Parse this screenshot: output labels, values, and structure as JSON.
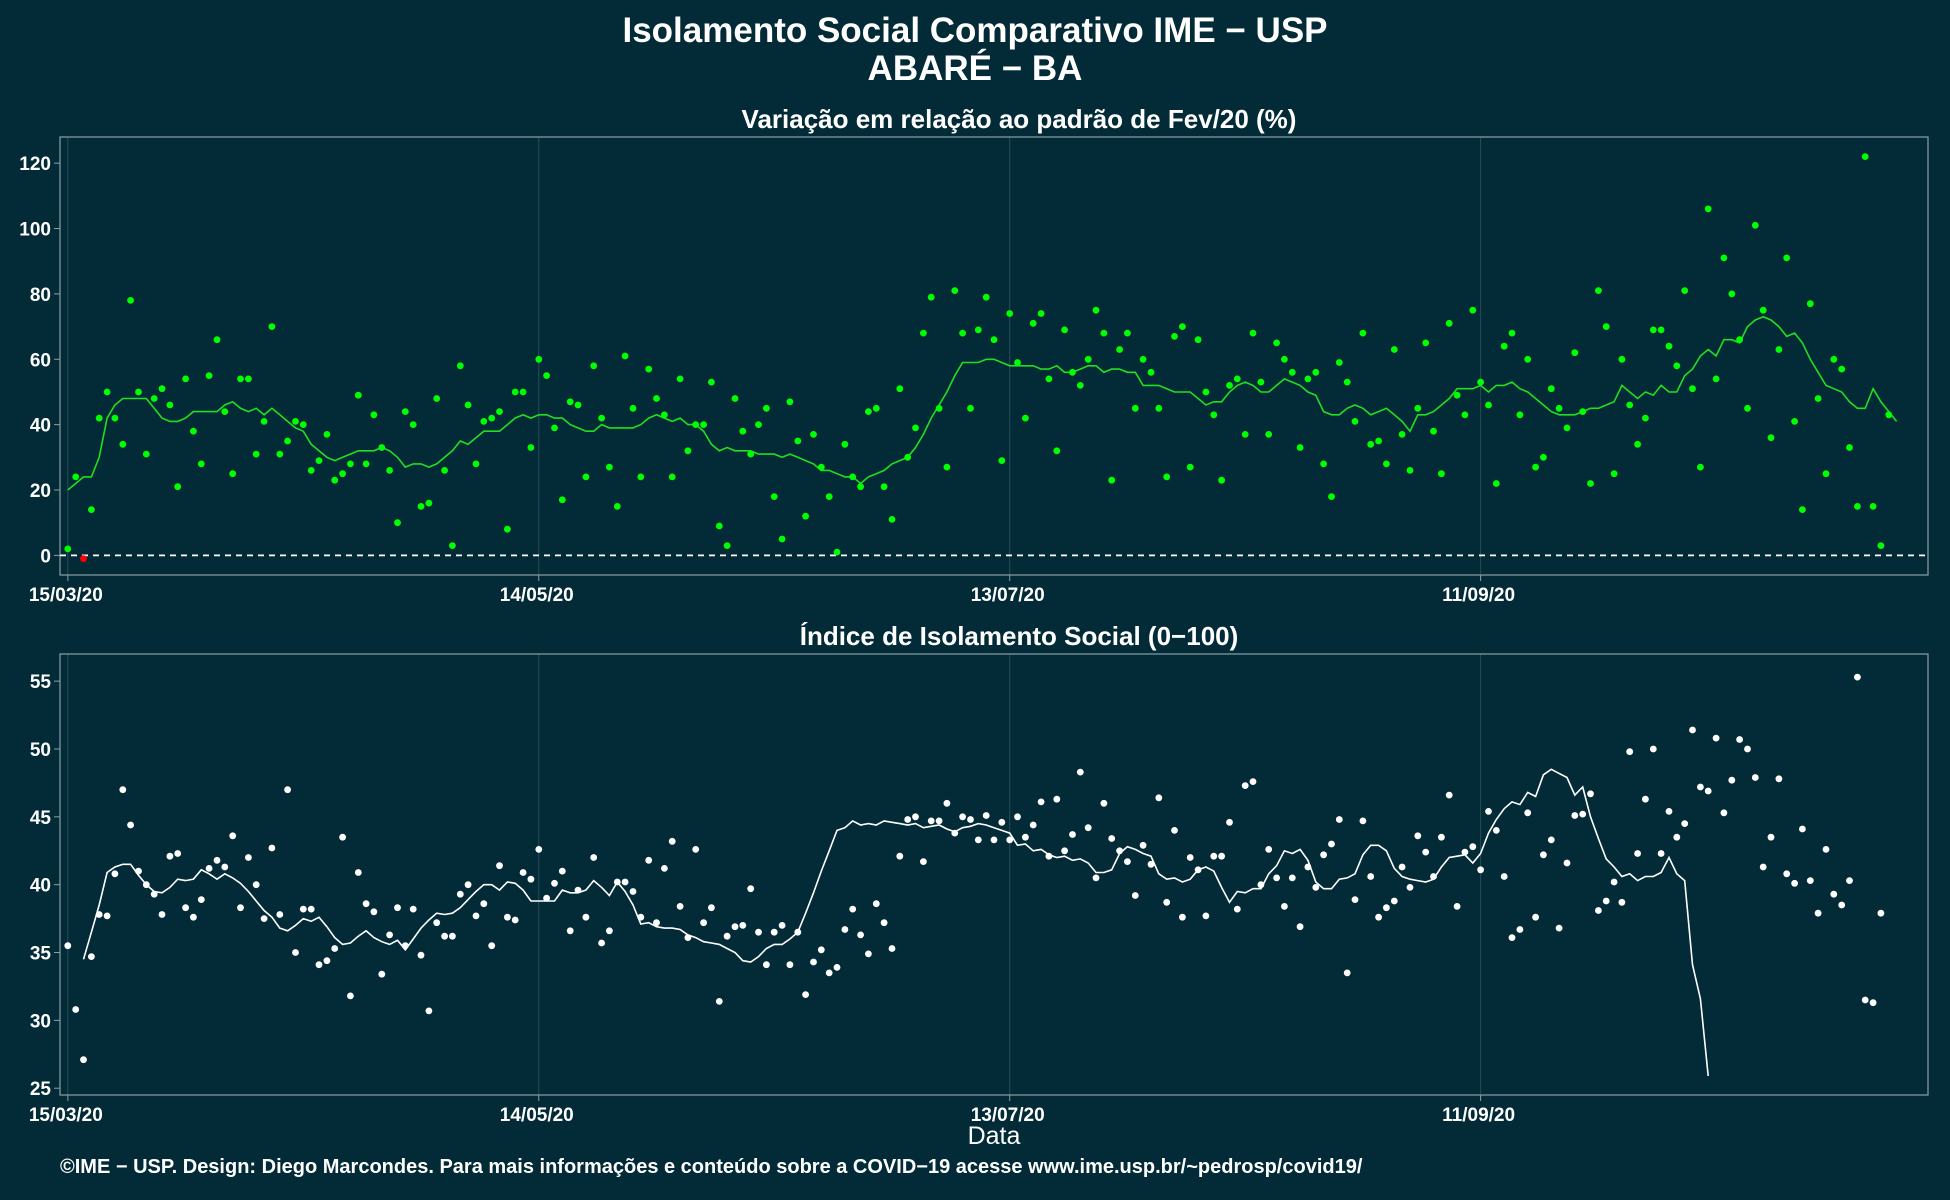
{
  "title": "Isolamento Social Comparativo IME − USP",
  "subtitle": "ABARÉ − BA",
  "footer": "©IME − USP. Design: Diego Marcondes. Para mais informações e conteúdo sobre a COVID−19 acesse www.ime.usp.br/~pedrosp/covid19/",
  "colors": {
    "background": "#022b37",
    "panel_border": "#8aa0a6",
    "grid": "#2a4d57",
    "variation_points": "#00ff00",
    "variation_negative_points": "#ff0000",
    "variation_line": "#22dd22",
    "index_points": "#ffffff",
    "index_line": "#ffffff",
    "zero_line": "#ffffff"
  },
  "chart_data": [
    {
      "type": "scatter",
      "title": "Variação em relação ao padrão de Fev/20 (%)",
      "xlabel": "",
      "ylabel": "",
      "x_start": "15/03/20",
      "x_ticks": [
        "15/03/20",
        "14/05/20",
        "13/07/20",
        "11/09/20"
      ],
      "x_tick_days": [
        0,
        60,
        120,
        180
      ],
      "x_range_days": [
        -1,
        237
      ],
      "ylim": [
        -6,
        128
      ],
      "y_ticks": [
        0,
        20,
        40,
        60,
        80,
        100,
        120
      ],
      "zero_line": true,
      "grid": true,
      "series": [
        {
          "kind": "points",
          "values": [
            2,
            24,
            -1,
            14,
            42,
            50,
            42,
            34,
            78,
            50,
            31,
            48,
            51,
            46,
            21,
            54,
            38,
            28,
            55,
            66,
            44,
            25,
            54,
            54,
            31,
            41,
            70,
            31,
            35,
            41,
            40,
            26,
            29,
            37,
            23,
            25,
            28,
            49,
            28,
            43,
            33,
            26,
            10,
            44,
            40,
            15,
            16,
            48,
            26,
            3,
            58,
            46,
            28,
            41,
            42,
            44,
            8,
            50,
            50,
            33,
            60,
            55,
            39,
            17,
            47,
            46,
            24,
            58,
            42,
            27,
            15,
            61,
            45,
            24,
            57,
            48,
            43,
            24,
            54,
            32,
            40,
            40,
            53,
            9,
            3,
            48,
            38,
            31,
            40,
            45,
            18,
            5,
            47,
            35,
            12,
            37,
            27,
            18,
            1,
            34,
            24,
            21,
            44,
            45,
            21,
            11,
            51,
            30,
            39,
            68,
            79,
            45,
            27,
            81,
            68,
            45,
            69,
            79,
            66,
            29,
            74,
            59,
            42,
            71,
            74,
            54,
            32,
            69,
            56,
            52,
            60,
            75,
            68,
            23,
            63,
            68,
            45,
            60,
            56,
            45,
            24,
            67,
            70,
            27,
            66,
            50,
            43,
            23,
            52,
            54,
            37,
            68,
            53,
            37,
            65,
            60,
            56,
            33,
            54,
            56,
            28,
            18,
            59,
            53,
            41,
            68,
            34,
            35,
            28,
            63,
            37,
            26,
            45,
            65,
            38,
            25,
            71,
            49,
            43,
            75,
            53,
            46,
            22,
            64,
            68,
            43,
            60,
            27,
            30,
            51,
            45,
            39,
            62,
            44,
            22,
            81,
            70,
            25,
            60,
            46,
            34,
            42,
            69,
            69,
            64,
            58,
            81,
            51,
            27,
            106,
            54,
            91,
            80,
            66,
            45,
            101,
            75,
            36,
            63,
            91,
            41,
            14,
            77,
            48,
            25,
            60,
            57,
            33,
            15,
            122,
            15,
            3,
            43
          ]
        },
        {
          "kind": "moving_average",
          "values": [
            20,
            22,
            24,
            24,
            30,
            42,
            46,
            48,
            48,
            48,
            48,
            45,
            42,
            41,
            41,
            42,
            44,
            44,
            44,
            44,
            46,
            47,
            45,
            44,
            45,
            43,
            45,
            43,
            41,
            39,
            38,
            34,
            32,
            30,
            29,
            30,
            31,
            32,
            32,
            32,
            33,
            32,
            30,
            27,
            28,
            28,
            27,
            28,
            30,
            32,
            35,
            34,
            36,
            38,
            38,
            38,
            40,
            42,
            43,
            42,
            43,
            43,
            42,
            42,
            40,
            39,
            38,
            38,
            40,
            39,
            39,
            39,
            39,
            40,
            42,
            43,
            42,
            41,
            42,
            40,
            40,
            38,
            34,
            32,
            33,
            32,
            32,
            32,
            31,
            31,
            31,
            30,
            31,
            30,
            29,
            28,
            26,
            26,
            25,
            24,
            24,
            22,
            24,
            25,
            26,
            28,
            29,
            30,
            33,
            37,
            42,
            46,
            50,
            55,
            59,
            59,
            59,
            60,
            60,
            59,
            58,
            58,
            58,
            58,
            57,
            57,
            58,
            56,
            56,
            57,
            58,
            58,
            56,
            57,
            57,
            56,
            56,
            52,
            52,
            52,
            51,
            50,
            50,
            50,
            48,
            46,
            47,
            47,
            50,
            52,
            53,
            52,
            50,
            50,
            52,
            54,
            53,
            52,
            50,
            49,
            44,
            43,
            43,
            45,
            46,
            45,
            43,
            44,
            45,
            43,
            41,
            38,
            43,
            43,
            44,
            46,
            48,
            51,
            51,
            51,
            52,
            50,
            52,
            52,
            53,
            51,
            50,
            48,
            46,
            44,
            43,
            43,
            43,
            44,
            45,
            45,
            46,
            47,
            52,
            50,
            48,
            50,
            49,
            52,
            50,
            50,
            55,
            57,
            61,
            63,
            61,
            66,
            66,
            65,
            70,
            72,
            73,
            72,
            70,
            67,
            68,
            65,
            60,
            56,
            52,
            51,
            50,
            47,
            45,
            45,
            51,
            47,
            44,
            41
          ]
        }
      ]
    },
    {
      "type": "scatter",
      "title": "Índice de Isolamento Social (0−100)",
      "xlabel": "Data",
      "ylabel": "",
      "x_start": "15/03/20",
      "x_ticks": [
        "15/03/20",
        "14/05/20",
        "13/07/20",
        "11/09/20"
      ],
      "x_tick_days": [
        0,
        60,
        120,
        180
      ],
      "x_range_days": [
        -1,
        237
      ],
      "ylim": [
        24.5,
        57
      ],
      "y_ticks": [
        25,
        30,
        35,
        40,
        45,
        50,
        55
      ],
      "grid": true,
      "series": [
        {
          "kind": "points",
          "values": [
            35.5,
            30.8,
            27.1,
            34.7,
            37.8,
            37.7,
            40.8,
            47,
            44.4,
            41,
            40,
            39.3,
            37.8,
            42.1,
            42.3,
            38.3,
            37.6,
            38.9,
            41.2,
            41.8,
            41.3,
            43.6,
            38.3,
            42,
            40,
            37.5,
            42.7,
            37.8,
            47,
            35,
            38.2,
            38.2,
            34.1,
            34.4,
            35.3,
            43.5,
            31.8,
            40.9,
            38.6,
            38,
            33.4,
            36.3,
            38.3,
            35.5,
            38.2,
            34.8,
            30.7,
            37.2,
            36.2,
            36.2,
            39.3,
            40,
            37.7,
            38.6,
            35.5,
            41.4,
            37.6,
            37.4,
            40.9,
            40.4,
            42.6,
            39,
            40.1,
            41,
            36.6,
            39.6,
            37.6,
            42,
            35.7,
            36.6,
            40.2,
            40.2,
            39.5,
            37.6,
            41.8,
            37.2,
            41.2,
            43.2,
            38.4,
            36.1,
            42.6,
            37.2,
            38.3,
            31.4,
            36.2,
            36.9,
            37,
            39.7,
            36.5,
            34.1,
            36.5,
            37,
            34.1,
            36.5,
            31.9,
            34.3,
            35.2,
            33.5,
            33.9,
            36.7,
            38.2,
            36.3,
            34.9,
            38.6,
            37.2,
            35.3,
            42.1,
            44.8,
            45,
            41.7,
            44.7,
            44.7,
            46,
            43.8,
            45,
            44.8,
            43.3,
            45.1,
            43.3,
            44.6,
            43.3,
            45,
            43.5,
            44.4,
            46.1,
            42.1,
            46.3,
            42.5,
            43.7,
            48.3,
            44.2,
            40.5,
            46,
            43.4,
            42.5,
            41.7,
            39.2,
            42.9,
            41.5,
            46.4,
            38.7,
            44,
            37.6,
            42,
            41.1,
            37.7,
            42.1,
            42.1,
            44.6,
            38.2,
            47.3,
            47.6,
            40,
            42.6,
            40.5,
            38.4,
            40.5,
            36.9,
            41.3,
            39.8,
            42.2,
            43,
            44.8,
            33.5,
            38.9,
            44.7,
            40.6,
            37.6,
            38.3,
            38.8,
            41.3,
            39.8,
            43.6,
            42.4,
            40.6,
            43.5,
            46.6,
            38.4,
            42.4,
            42.8,
            41.1,
            45.4,
            44,
            40.6,
            36.1,
            36.7,
            45.3,
            37.6,
            42.2,
            43.3,
            36.8,
            41.6,
            45.1,
            45.2,
            46.7,
            38.1,
            38.8,
            40.2,
            38.7,
            49.8,
            42.3,
            46.3,
            50,
            42.3,
            45.4,
            43.5,
            44.5,
            51.4,
            47.2,
            46.9,
            50.8,
            45.3,
            47.7,
            50.7,
            50,
            47.9,
            41.3,
            43.5,
            47.8,
            40.8,
            40.1,
            44.1,
            40.3,
            37.9,
            42.6,
            39.3,
            38.5,
            40.3,
            55.3,
            31.5,
            31.3,
            37.9
          ]
        },
        {
          "kind": "moving_average",
          "values": [
            null,
            null,
            34.5,
            36.5,
            38.5,
            40.9,
            41.3,
            41.5,
            41.5,
            40.7,
            40,
            39.5,
            39.4,
            39.8,
            40.4,
            40.3,
            40.4,
            41.1,
            40.8,
            40.4,
            40.8,
            40.5,
            40.1,
            39.5,
            38.8,
            38.1,
            37.6,
            36.8,
            36.6,
            37,
            37.5,
            37.3,
            37.6,
            36.9,
            36.1,
            35.6,
            35.7,
            36.2,
            36.6,
            36.1,
            35.8,
            35.6,
            35.9,
            35.2,
            36,
            36.8,
            37.4,
            37.9,
            37.8,
            37.9,
            38.3,
            38.9,
            39.5,
            40,
            40,
            39.6,
            40.2,
            40.1,
            39.6,
            38.8,
            38.8,
            38.8,
            38.8,
            39.6,
            39.4,
            39.4,
            39.6,
            40.3,
            39.8,
            39.2,
            40.2,
            39.5,
            38.5,
            37.1,
            37.2,
            36.9,
            36.8,
            36.8,
            36.7,
            36.3,
            36.1,
            35.8,
            35.7,
            35.6,
            35.3,
            35,
            34.4,
            34.3,
            34.7,
            35.3,
            35.6,
            35.6,
            36,
            36.5,
            37.9,
            39.4,
            41,
            42.5,
            44,
            44.2,
            44.7,
            44.4,
            44.5,
            44.4,
            44.7,
            44.6,
            44.5,
            44.4,
            44.5,
            44.2,
            44.3,
            44.4,
            44.1,
            43.9,
            44.2,
            44.3,
            44.5,
            44.4,
            44.2,
            44,
            43.8,
            42.9,
            43,
            42.5,
            42.6,
            42.2,
            42,
            42.1,
            41.8,
            41.9,
            41.6,
            40.9,
            40.9,
            41.1,
            42.3,
            42.8,
            42.6,
            42.3,
            42.1,
            40.8,
            40.4,
            40.5,
            40.2,
            40.4,
            41.1,
            41.3,
            41,
            39.8,
            38.7,
            39.5,
            39.4,
            39.7,
            39.7,
            40.8,
            41.4,
            42.5,
            42.3,
            42.6,
            41.8,
            40.2,
            39.7,
            39.7,
            40.4,
            40.5,
            40.8,
            42.2,
            42.9,
            42.9,
            42.5,
            41.2,
            40.6,
            40.4,
            40.3,
            40.2,
            40.4,
            41.3,
            42,
            42.1,
            42.2,
            41.6,
            42.3,
            43.8,
            44.8,
            45.6,
            46.1,
            45.9,
            46.8,
            46.5,
            48.1,
            48.5,
            48.2,
            47.9,
            46.6,
            47.2,
            45,
            43.4,
            41.9,
            41.3,
            40.6,
            40.8,
            40.3,
            40.6,
            40.6,
            40.9,
            42,
            40.8,
            40.3,
            34.1,
            31.6,
            25.9
          ]
        }
      ]
    }
  ]
}
